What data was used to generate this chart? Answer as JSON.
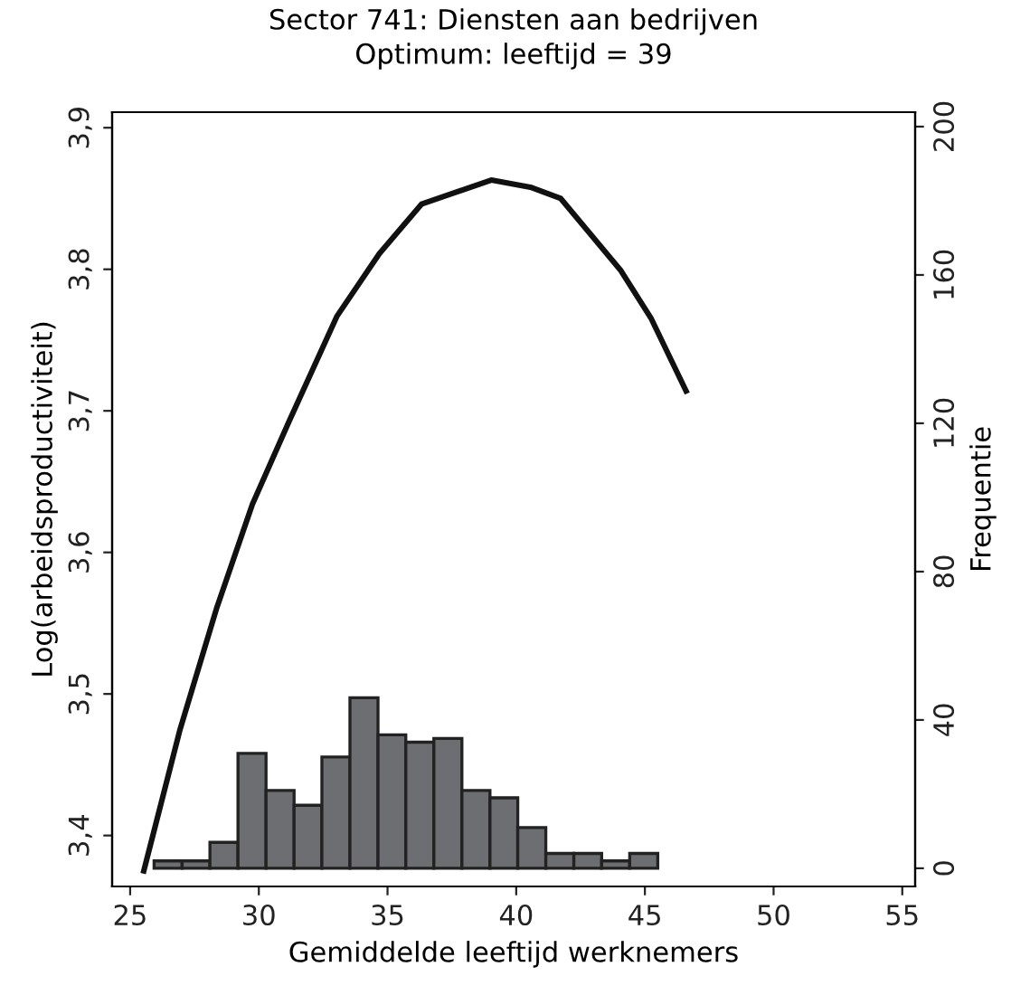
{
  "chart_data": {
    "type": "line",
    "title": "Sector 741: Diensten aan bedrijven",
    "subtitle": "Optimum: leeftijd = 39",
    "xlabel": "Gemiddelde leeftijd werknemers",
    "ylabel": "Log(arbeidsproductiviteit)",
    "y2label": "Frequentie",
    "xlim": [
      24.3,
      55.5
    ],
    "xticks": [
      25,
      30,
      35,
      40,
      45,
      50,
      55
    ],
    "ylim": [
      3.364,
      3.911
    ],
    "yticks": [
      {
        "value": 3.4,
        "label": "3,4"
      },
      {
        "value": 3.5,
        "label": "3,5"
      },
      {
        "value": 3.6,
        "label": "3,6"
      },
      {
        "value": 3.7,
        "label": "3,7"
      },
      {
        "value": 3.8,
        "label": "3,8"
      },
      {
        "value": 3.9,
        "label": "3,9"
      }
    ],
    "y2lim": [
      -4.9,
      203.9
    ],
    "y2ticks": [
      0,
      40,
      80,
      120,
      160,
      200
    ],
    "grid": false,
    "legend": false,
    "series": [
      {
        "type": "histogram",
        "axis": "y2",
        "color": "#6d6e71",
        "bins": [
          25.93,
          27.02,
          28.1,
          29.19,
          30.28,
          31.37,
          32.45,
          33.54,
          34.63,
          35.71,
          36.8,
          37.89,
          38.98,
          40.06,
          41.15,
          42.24,
          43.32,
          44.41,
          45.5
        ],
        "values": [
          2,
          2,
          7,
          31,
          21,
          17,
          30,
          46,
          36,
          34,
          35,
          21,
          19,
          11,
          4,
          4,
          2,
          4
        ]
      },
      {
        "color": "#111111",
        "line_style": "solid",
        "x": [
          25.53,
          26.94,
          28.35,
          29.75,
          31.16,
          33.04,
          34.68,
          36.32,
          39.03,
          40.55,
          41.73,
          44.07,
          45.25,
          46.6
        ],
        "values": [
          3.375,
          3.475,
          3.56,
          3.634,
          3.692,
          3.767,
          3.811,
          3.846,
          3.863,
          3.858,
          3.85,
          3.799,
          3.765,
          3.714
        ]
      }
    ]
  }
}
